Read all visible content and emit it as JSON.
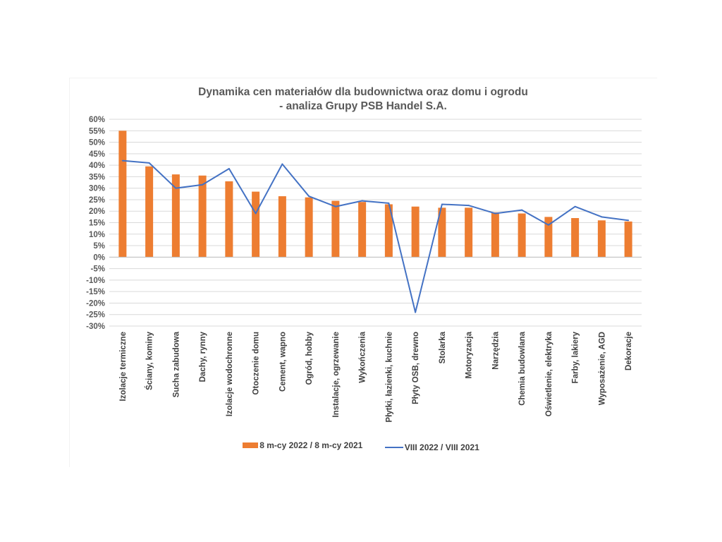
{
  "colors": {
    "bar": "#ED7D31",
    "line": "#4472C4",
    "grid": "#D9D9D9",
    "text": "#595959"
  },
  "chart_data": {
    "type": "bar",
    "title": "Dynamika cen materiałów dla budownictwa oraz domu i ogrodu",
    "subtitle": "- analiza Grupy PSB Handel S.A.",
    "categories": [
      "Izolacje termiczne",
      "Ściany, kominy",
      "Sucha zabudowa",
      "Dachy, rynny",
      "Izolacje wodochronne",
      "Otoczenie domu",
      "Cement, wapno",
      "Ogród, hobby",
      "Instalacje, ogrzewanie",
      "Wykończenia",
      "Płytki, łazienki, kuchnie",
      "Płyty OSB, drewno",
      "Stolarka",
      "Motoryzacja",
      "Narzędzia",
      "Chemia budowlana",
      "Oświetlenie, elektryka",
      "Farby, lakiery",
      "Wyposażenie, AGD",
      "Dekoracje"
    ],
    "series": [
      {
        "name": "8 m-cy 2022 / 8 m-cy 2021",
        "type": "bar",
        "values": [
          55,
          39.5,
          36,
          35.5,
          33,
          28.5,
          26.5,
          26,
          24.5,
          24,
          23,
          22,
          21.5,
          21.5,
          19.5,
          19,
          17.5,
          17,
          16,
          15.5
        ]
      },
      {
        "name": "VIII 2022 / VIII 2021",
        "type": "line",
        "values": [
          42,
          41,
          30,
          31.5,
          38.5,
          19,
          40.5,
          26.5,
          22,
          24.5,
          23.5,
          -24,
          23,
          22.5,
          19,
          20.5,
          14,
          22,
          17.5,
          16
        ]
      }
    ],
    "y_ticks": [
      "60%",
      "55%",
      "50%",
      "45%",
      "40%",
      "35%",
      "30%",
      "25%",
      "20%",
      "15%",
      "10%",
      "5%",
      "0%",
      "-5%",
      "-10%",
      "-15%",
      "-20%",
      "-25%",
      "-30%"
    ],
    "ylim": [
      -30,
      60
    ],
    "grid": true,
    "legend_position": "bottom"
  }
}
